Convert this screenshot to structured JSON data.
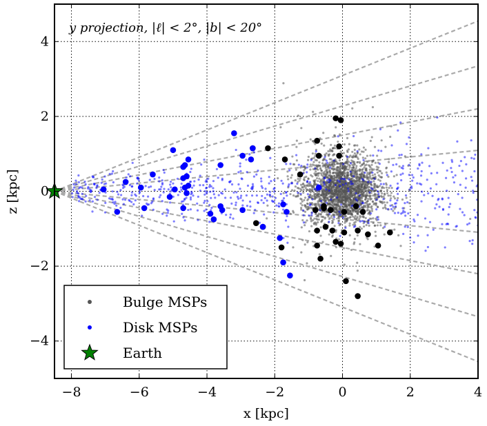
{
  "chart_data": {
    "type": "scatter",
    "title": "y projection, |ℓ| < 2°, |b| < 20°",
    "xlabel": "x [kpc]",
    "ylabel": "z [kpc]",
    "xlim": [
      -8.5,
      4
    ],
    "ylim": [
      -5,
      5
    ],
    "xticks": [
      -8,
      -6,
      -4,
      -2,
      0,
      2,
      4
    ],
    "xtick_labels": [
      "−8",
      "−6",
      "−4",
      "−2",
      "0",
      "2",
      "4"
    ],
    "yticks": [
      -4,
      -2,
      0,
      2,
      4
    ],
    "ytick_labels": [
      "−4",
      "−2",
      "0",
      "2",
      "4"
    ],
    "grid": true,
    "legend_position": "lower-left",
    "colors": {
      "bulge": "#555555",
      "disk": "#0000ff",
      "earth": "#008000",
      "cone": "#aaaaaa"
    },
    "earth": {
      "x": -8.5,
      "z": 0
    },
    "cone_line_slopes_deg": [
      -20,
      -15,
      -10,
      -5,
      5,
      10,
      15,
      20
    ],
    "legend": [
      {
        "label": "Bulge MSPs",
        "marker": "dot",
        "color": "#555555"
      },
      {
        "label": "Disk MSPs",
        "marker": "dot",
        "color": "#0000ff"
      },
      {
        "label": "Earth",
        "marker": "star",
        "color": "#008000"
      }
    ],
    "series": [
      {
        "name": "Bulge MSPs (detected)",
        "color": "#000000",
        "points": [
          [
            -0.2,
            1.95
          ],
          [
            -0.05,
            1.9
          ],
          [
            -0.75,
            1.35
          ],
          [
            -0.1,
            1.2
          ],
          [
            -0.7,
            0.95
          ],
          [
            -0.1,
            0.95
          ],
          [
            -2.65,
            1.15
          ],
          [
            -2.2,
            1.15
          ],
          [
            -1.7,
            0.85
          ],
          [
            -1.25,
            0.45
          ],
          [
            -0.55,
            -0.45
          ],
          [
            -0.55,
            -0.4
          ],
          [
            -0.8,
            -0.5
          ],
          [
            -0.35,
            -0.5
          ],
          [
            0.05,
            -0.55
          ],
          [
            0.4,
            -0.4
          ],
          [
            0.6,
            -0.55
          ],
          [
            -2.55,
            -0.85
          ],
          [
            -2.35,
            -0.95
          ],
          [
            -0.5,
            -0.95
          ],
          [
            -0.75,
            -1.05
          ],
          [
            -0.3,
            -1.05
          ],
          [
            0.05,
            -1.1
          ],
          [
            0.45,
            -1.05
          ],
          [
            0.75,
            -1.15
          ],
          [
            1.4,
            -1.1
          ],
          [
            -0.2,
            -1.35
          ],
          [
            -0.05,
            -1.4
          ],
          [
            -0.75,
            -1.45
          ],
          [
            1.05,
            -1.45
          ],
          [
            -1.8,
            -1.5
          ],
          [
            -0.65,
            -1.8
          ],
          [
            0.1,
            -2.4
          ],
          [
            0.45,
            -2.8
          ]
        ]
      },
      {
        "name": "Disk MSPs (detected)",
        "color": "#0000ff",
        "points": [
          [
            -7.05,
            0.05
          ],
          [
            -6.4,
            0.25
          ],
          [
            -6.65,
            -0.55
          ],
          [
            -5.95,
            0.1
          ],
          [
            -5.85,
            -0.45
          ],
          [
            -5.6,
            0.45
          ],
          [
            -5.0,
            1.1
          ],
          [
            -5.1,
            -0.15
          ],
          [
            -4.95,
            0.05
          ],
          [
            -4.7,
            0.65
          ],
          [
            -4.65,
            0.7
          ],
          [
            -4.55,
            0.85
          ],
          [
            -4.7,
            0.35
          ],
          [
            -4.6,
            0.4
          ],
          [
            -4.65,
            0.1
          ],
          [
            -4.55,
            0.15
          ],
          [
            -4.6,
            -0.05
          ],
          [
            -4.7,
            -0.45
          ],
          [
            -3.9,
            -0.6
          ],
          [
            -3.6,
            -0.4
          ],
          [
            -3.55,
            -0.5
          ],
          [
            -3.8,
            -0.75
          ],
          [
            -3.6,
            0.7
          ],
          [
            -3.2,
            1.55
          ],
          [
            -2.65,
            1.15
          ],
          [
            -2.95,
            0.95
          ],
          [
            -2.7,
            0.85
          ],
          [
            -2.95,
            -0.5
          ],
          [
            -2.35,
            -0.95
          ],
          [
            -1.85,
            -1.25
          ],
          [
            -1.75,
            -1.9
          ],
          [
            -1.55,
            -2.25
          ],
          [
            -1.75,
            -0.35
          ],
          [
            -1.65,
            -0.55
          ],
          [
            -0.7,
            0.1
          ]
        ]
      }
    ]
  }
}
